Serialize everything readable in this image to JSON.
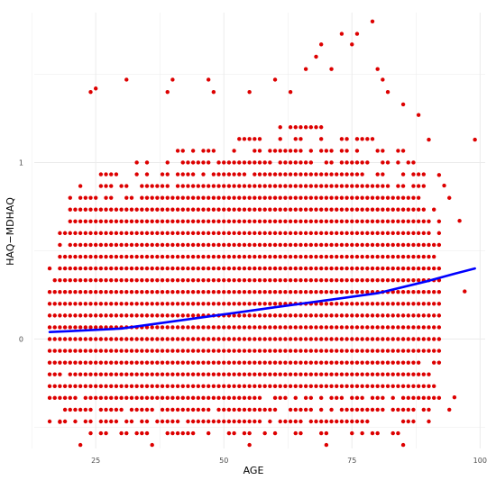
{
  "chart_data": {
    "type": "scatter",
    "title": "",
    "xlabel": "AGE",
    "ylabel": "HAQ−MDHAQ",
    "xlim": [
      13,
      101
    ],
    "ylim": [
      -0.62,
      1.85
    ],
    "x_ticks": [
      25,
      50,
      75,
      100
    ],
    "x_tick_labels": [
      "25",
      "50",
      "75",
      "100"
    ],
    "y_ticks": [
      0,
      1
    ],
    "y_tick_labels": [
      "0",
      "1"
    ],
    "grid": true,
    "point_grid": {
      "x_step": 1,
      "y_step": 0.0667,
      "description": "Dense cloud of discrete HAQ values (multiples of 1/15) across ages 16–92, spanning roughly -0.6 to 1.2 with sparse outliers above"
    },
    "density_envelope": {
      "age": [
        16,
        20,
        25,
        30,
        40,
        50,
        60,
        70,
        80,
        85,
        90,
        92
      ],
      "lower": [
        -0.47,
        -0.52,
        -0.55,
        -0.58,
        -0.58,
        -0.58,
        -0.58,
        -0.58,
        -0.57,
        -0.55,
        -0.47,
        -0.35
      ],
      "upper": [
        0.47,
        0.87,
        0.93,
        1.0,
        1.07,
        1.13,
        1.2,
        1.2,
        1.13,
        1.07,
        0.93,
        0.73
      ]
    },
    "outliers": [
      {
        "x": 24,
        "y": 1.4
      },
      {
        "x": 25,
        "y": 1.42
      },
      {
        "x": 31,
        "y": 1.47
      },
      {
        "x": 39,
        "y": 1.4
      },
      {
        "x": 40,
        "y": 1.47
      },
      {
        "x": 47,
        "y": 1.47
      },
      {
        "x": 48,
        "y": 1.4
      },
      {
        "x": 55,
        "y": 1.4
      },
      {
        "x": 60,
        "y": 1.47
      },
      {
        "x": 63,
        "y": 1.4
      },
      {
        "x": 66,
        "y": 1.53
      },
      {
        "x": 68,
        "y": 1.6
      },
      {
        "x": 69,
        "y": 1.67
      },
      {
        "x": 71,
        "y": 1.53
      },
      {
        "x": 73,
        "y": 1.73
      },
      {
        "x": 75,
        "y": 1.67
      },
      {
        "x": 76,
        "y": 1.73
      },
      {
        "x": 79,
        "y": 1.8
      },
      {
        "x": 80,
        "y": 1.53
      },
      {
        "x": 81,
        "y": 1.47
      },
      {
        "x": 82,
        "y": 1.4
      },
      {
        "x": 85,
        "y": 1.33
      },
      {
        "x": 88,
        "y": 1.27
      },
      {
        "x": 90,
        "y": 1.13
      },
      {
        "x": 92,
        "y": 0.93
      },
      {
        "x": 93,
        "y": 0.87
      },
      {
        "x": 94,
        "y": 0.8
      },
      {
        "x": 96,
        "y": 0.67
      },
      {
        "x": 97,
        "y": 0.27
      },
      {
        "x": 99,
        "y": 1.13
      },
      {
        "x": 95,
        "y": -0.33
      },
      {
        "x": 94,
        "y": -0.4
      },
      {
        "x": 18,
        "y": -0.47
      },
      {
        "x": 22,
        "y": -0.6
      },
      {
        "x": 36,
        "y": -0.6
      },
      {
        "x": 55,
        "y": -0.6
      },
      {
        "x": 70,
        "y": -0.6
      },
      {
        "x": 85,
        "y": -0.6
      }
    ],
    "trend": {
      "name": "",
      "x": [
        16,
        20,
        30,
        40,
        50,
        60,
        70,
        80,
        90,
        95,
        99
      ],
      "y": [
        0.04,
        0.045,
        0.06,
        0.1,
        0.14,
        0.18,
        0.22,
        0.26,
        0.33,
        0.37,
        0.4
      ]
    },
    "colors": {
      "points": "#dd0000",
      "trend": "#0000ff",
      "grid": "#ebebeb",
      "background": "#ffffff",
      "tick_text": "#4d4d4d",
      "axis_title_text": "#000000"
    }
  }
}
